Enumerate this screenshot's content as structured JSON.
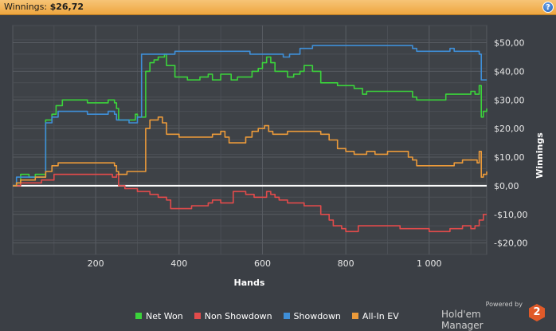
{
  "header": {
    "label": "Winnings:",
    "value": "$26,72",
    "help_icon_text": "?"
  },
  "chart_data": {
    "type": "line",
    "xlabel": "Hands",
    "ylabel": "Winnings",
    "xlim": [
      1,
      1138
    ],
    "ylim": [
      -24,
      56
    ],
    "x_ticks": [
      200,
      400,
      600,
      800,
      1000
    ],
    "x_tick_labels": [
      "200",
      "400",
      "600",
      "800",
      "1 000"
    ],
    "y_ticks": [
      -20,
      -10,
      0,
      10,
      20,
      30,
      40,
      50
    ],
    "y_tick_labels": [
      "-$20,00",
      "-$10,00",
      "$0,00",
      "$10,00",
      "$20,00",
      "$30,00",
      "$40,00",
      "$50,00"
    ],
    "grid": true,
    "legend_position": "bottom",
    "series": [
      {
        "name": "Net Won",
        "color": "#3bd33b",
        "points": [
          [
            1,
            0
          ],
          [
            10,
            1
          ],
          [
            20,
            4
          ],
          [
            40,
            3
          ],
          [
            55,
            4
          ],
          [
            65,
            4
          ],
          [
            75,
            4
          ],
          [
            80,
            23
          ],
          [
            95,
            25
          ],
          [
            105,
            28
          ],
          [
            120,
            30
          ],
          [
            150,
            30
          ],
          [
            180,
            29
          ],
          [
            200,
            29
          ],
          [
            230,
            30
          ],
          [
            245,
            29
          ],
          [
            250,
            27
          ],
          [
            255,
            23
          ],
          [
            280,
            23
          ],
          [
            295,
            25
          ],
          [
            300,
            24
          ],
          [
            310,
            24
          ],
          [
            320,
            40
          ],
          [
            330,
            43
          ],
          [
            340,
            44
          ],
          [
            350,
            45
          ],
          [
            365,
            46
          ],
          [
            370,
            42
          ],
          [
            380,
            42
          ],
          [
            390,
            38
          ],
          [
            400,
            38
          ],
          [
            420,
            37
          ],
          [
            450,
            38
          ],
          [
            470,
            39
          ],
          [
            480,
            37
          ],
          [
            500,
            39
          ],
          [
            510,
            39
          ],
          [
            520,
            39
          ],
          [
            525,
            37
          ],
          [
            540,
            38
          ],
          [
            560,
            38
          ],
          [
            575,
            40
          ],
          [
            590,
            41
          ],
          [
            600,
            43
          ],
          [
            610,
            45
          ],
          [
            620,
            43
          ],
          [
            630,
            40
          ],
          [
            640,
            40
          ],
          [
            660,
            38
          ],
          [
            675,
            39
          ],
          [
            690,
            40
          ],
          [
            700,
            42
          ],
          [
            720,
            40
          ],
          [
            740,
            36
          ],
          [
            760,
            36
          ],
          [
            780,
            35
          ],
          [
            800,
            35
          ],
          [
            820,
            34
          ],
          [
            830,
            34
          ],
          [
            840,
            32
          ],
          [
            850,
            33
          ],
          [
            870,
            33
          ],
          [
            900,
            33
          ],
          [
            950,
            33
          ],
          [
            960,
            31
          ],
          [
            970,
            30
          ],
          [
            1000,
            30
          ],
          [
            1020,
            30
          ],
          [
            1040,
            32
          ],
          [
            1060,
            32
          ],
          [
            1080,
            32
          ],
          [
            1100,
            33
          ],
          [
            1110,
            32
          ],
          [
            1120,
            35
          ],
          [
            1125,
            24
          ],
          [
            1130,
            26
          ],
          [
            1138,
            27
          ]
        ]
      },
      {
        "name": "Non Showdown",
        "color": "#e24b4b",
        "points": [
          [
            1,
            0
          ],
          [
            20,
            1
          ],
          [
            40,
            1
          ],
          [
            60,
            1
          ],
          [
            70,
            2
          ],
          [
            100,
            4
          ],
          [
            130,
            4
          ],
          [
            160,
            4
          ],
          [
            190,
            4
          ],
          [
            220,
            4
          ],
          [
            240,
            3
          ],
          [
            250,
            4
          ],
          [
            255,
            0
          ],
          [
            270,
            -1
          ],
          [
            290,
            -1
          ],
          [
            300,
            -2
          ],
          [
            320,
            -2
          ],
          [
            330,
            -3
          ],
          [
            350,
            -4
          ],
          [
            370,
            -5
          ],
          [
            380,
            -8
          ],
          [
            400,
            -8
          ],
          [
            430,
            -7
          ],
          [
            470,
            -6
          ],
          [
            480,
            -5
          ],
          [
            500,
            -6
          ],
          [
            520,
            -6
          ],
          [
            530,
            -2
          ],
          [
            545,
            -2
          ],
          [
            560,
            -3
          ],
          [
            580,
            -4
          ],
          [
            600,
            -4
          ],
          [
            610,
            -2
          ],
          [
            620,
            -3
          ],
          [
            630,
            -4
          ],
          [
            640,
            -5
          ],
          [
            660,
            -6
          ],
          [
            680,
            -6
          ],
          [
            690,
            -6
          ],
          [
            700,
            -7
          ],
          [
            720,
            -7
          ],
          [
            740,
            -10
          ],
          [
            760,
            -12
          ],
          [
            770,
            -14
          ],
          [
            790,
            -15
          ],
          [
            800,
            -16
          ],
          [
            830,
            -14
          ],
          [
            850,
            -14
          ],
          [
            870,
            -14
          ],
          [
            900,
            -14
          ],
          [
            930,
            -15
          ],
          [
            950,
            -15
          ],
          [
            1000,
            -16
          ],
          [
            1030,
            -16
          ],
          [
            1050,
            -15
          ],
          [
            1080,
            -14
          ],
          [
            1100,
            -15
          ],
          [
            1110,
            -14
          ],
          [
            1120,
            -12
          ],
          [
            1130,
            -10
          ],
          [
            1138,
            -10
          ]
        ]
      },
      {
        "name": "Showdown",
        "color": "#3f8fd8",
        "points": [
          [
            1,
            0
          ],
          [
            10,
            3
          ],
          [
            20,
            3
          ],
          [
            40,
            3
          ],
          [
            55,
            3
          ],
          [
            75,
            3
          ],
          [
            80,
            22
          ],
          [
            95,
            24
          ],
          [
            110,
            26
          ],
          [
            150,
            26
          ],
          [
            170,
            26
          ],
          [
            180,
            25
          ],
          [
            200,
            25
          ],
          [
            230,
            26
          ],
          [
            245,
            25
          ],
          [
            250,
            23
          ],
          [
            280,
            22
          ],
          [
            300,
            24
          ],
          [
            310,
            46
          ],
          [
            330,
            46
          ],
          [
            370,
            46
          ],
          [
            390,
            47
          ],
          [
            420,
            47
          ],
          [
            480,
            47
          ],
          [
            500,
            47
          ],
          [
            520,
            47
          ],
          [
            550,
            47
          ],
          [
            570,
            46
          ],
          [
            610,
            46
          ],
          [
            640,
            46
          ],
          [
            650,
            45
          ],
          [
            665,
            46
          ],
          [
            680,
            46
          ],
          [
            690,
            48
          ],
          [
            720,
            49
          ],
          [
            800,
            49
          ],
          [
            830,
            49
          ],
          [
            870,
            49
          ],
          [
            900,
            49
          ],
          [
            950,
            49
          ],
          [
            960,
            48
          ],
          [
            970,
            47
          ],
          [
            1000,
            47
          ],
          [
            1040,
            47
          ],
          [
            1050,
            48
          ],
          [
            1060,
            47
          ],
          [
            1080,
            47
          ],
          [
            1100,
            47
          ],
          [
            1120,
            46
          ],
          [
            1125,
            37
          ],
          [
            1138,
            37
          ]
        ]
      },
      {
        "name": "All-In EV",
        "color": "#eb9a3a",
        "points": [
          [
            1,
            0
          ],
          [
            10,
            1
          ],
          [
            20,
            2
          ],
          [
            40,
            2
          ],
          [
            55,
            3
          ],
          [
            60,
            3
          ],
          [
            80,
            5
          ],
          [
            95,
            7
          ],
          [
            110,
            8
          ],
          [
            150,
            8
          ],
          [
            180,
            8
          ],
          [
            200,
            8
          ],
          [
            230,
            8
          ],
          [
            245,
            7
          ],
          [
            250,
            5
          ],
          [
            255,
            4
          ],
          [
            275,
            5
          ],
          [
            295,
            5
          ],
          [
            310,
            5
          ],
          [
            320,
            20
          ],
          [
            330,
            23
          ],
          [
            340,
            23
          ],
          [
            350,
            24
          ],
          [
            360,
            22
          ],
          [
            370,
            18
          ],
          [
            380,
            18
          ],
          [
            400,
            17
          ],
          [
            420,
            17
          ],
          [
            450,
            17
          ],
          [
            480,
            18
          ],
          [
            500,
            19
          ],
          [
            510,
            17
          ],
          [
            520,
            15
          ],
          [
            545,
            15
          ],
          [
            560,
            17
          ],
          [
            575,
            19
          ],
          [
            590,
            20
          ],
          [
            605,
            21
          ],
          [
            615,
            19
          ],
          [
            625,
            18
          ],
          [
            640,
            18
          ],
          [
            660,
            19
          ],
          [
            680,
            19
          ],
          [
            700,
            19
          ],
          [
            720,
            19
          ],
          [
            740,
            18
          ],
          [
            760,
            16
          ],
          [
            780,
            13
          ],
          [
            800,
            12
          ],
          [
            820,
            11
          ],
          [
            830,
            11
          ],
          [
            850,
            12
          ],
          [
            870,
            11
          ],
          [
            900,
            12
          ],
          [
            930,
            12
          ],
          [
            950,
            10
          ],
          [
            960,
            9
          ],
          [
            970,
            7
          ],
          [
            1000,
            7
          ],
          [
            1040,
            7
          ],
          [
            1060,
            8
          ],
          [
            1080,
            9
          ],
          [
            1100,
            9
          ],
          [
            1115,
            8
          ],
          [
            1120,
            12
          ],
          [
            1125,
            3
          ],
          [
            1130,
            4
          ],
          [
            1138,
            5
          ]
        ]
      }
    ]
  },
  "legend": [
    {
      "label": "Net Won",
      "color": "#3bd33b"
    },
    {
      "label": "Non Showdown",
      "color": "#e24b4b"
    },
    {
      "label": "Showdown",
      "color": "#3f8fd8"
    },
    {
      "label": "All-In EV",
      "color": "#eb9a3a"
    }
  ],
  "branding": {
    "powered_by": "Powered by",
    "product": "Hold'em Manager",
    "logo_text": "2"
  }
}
